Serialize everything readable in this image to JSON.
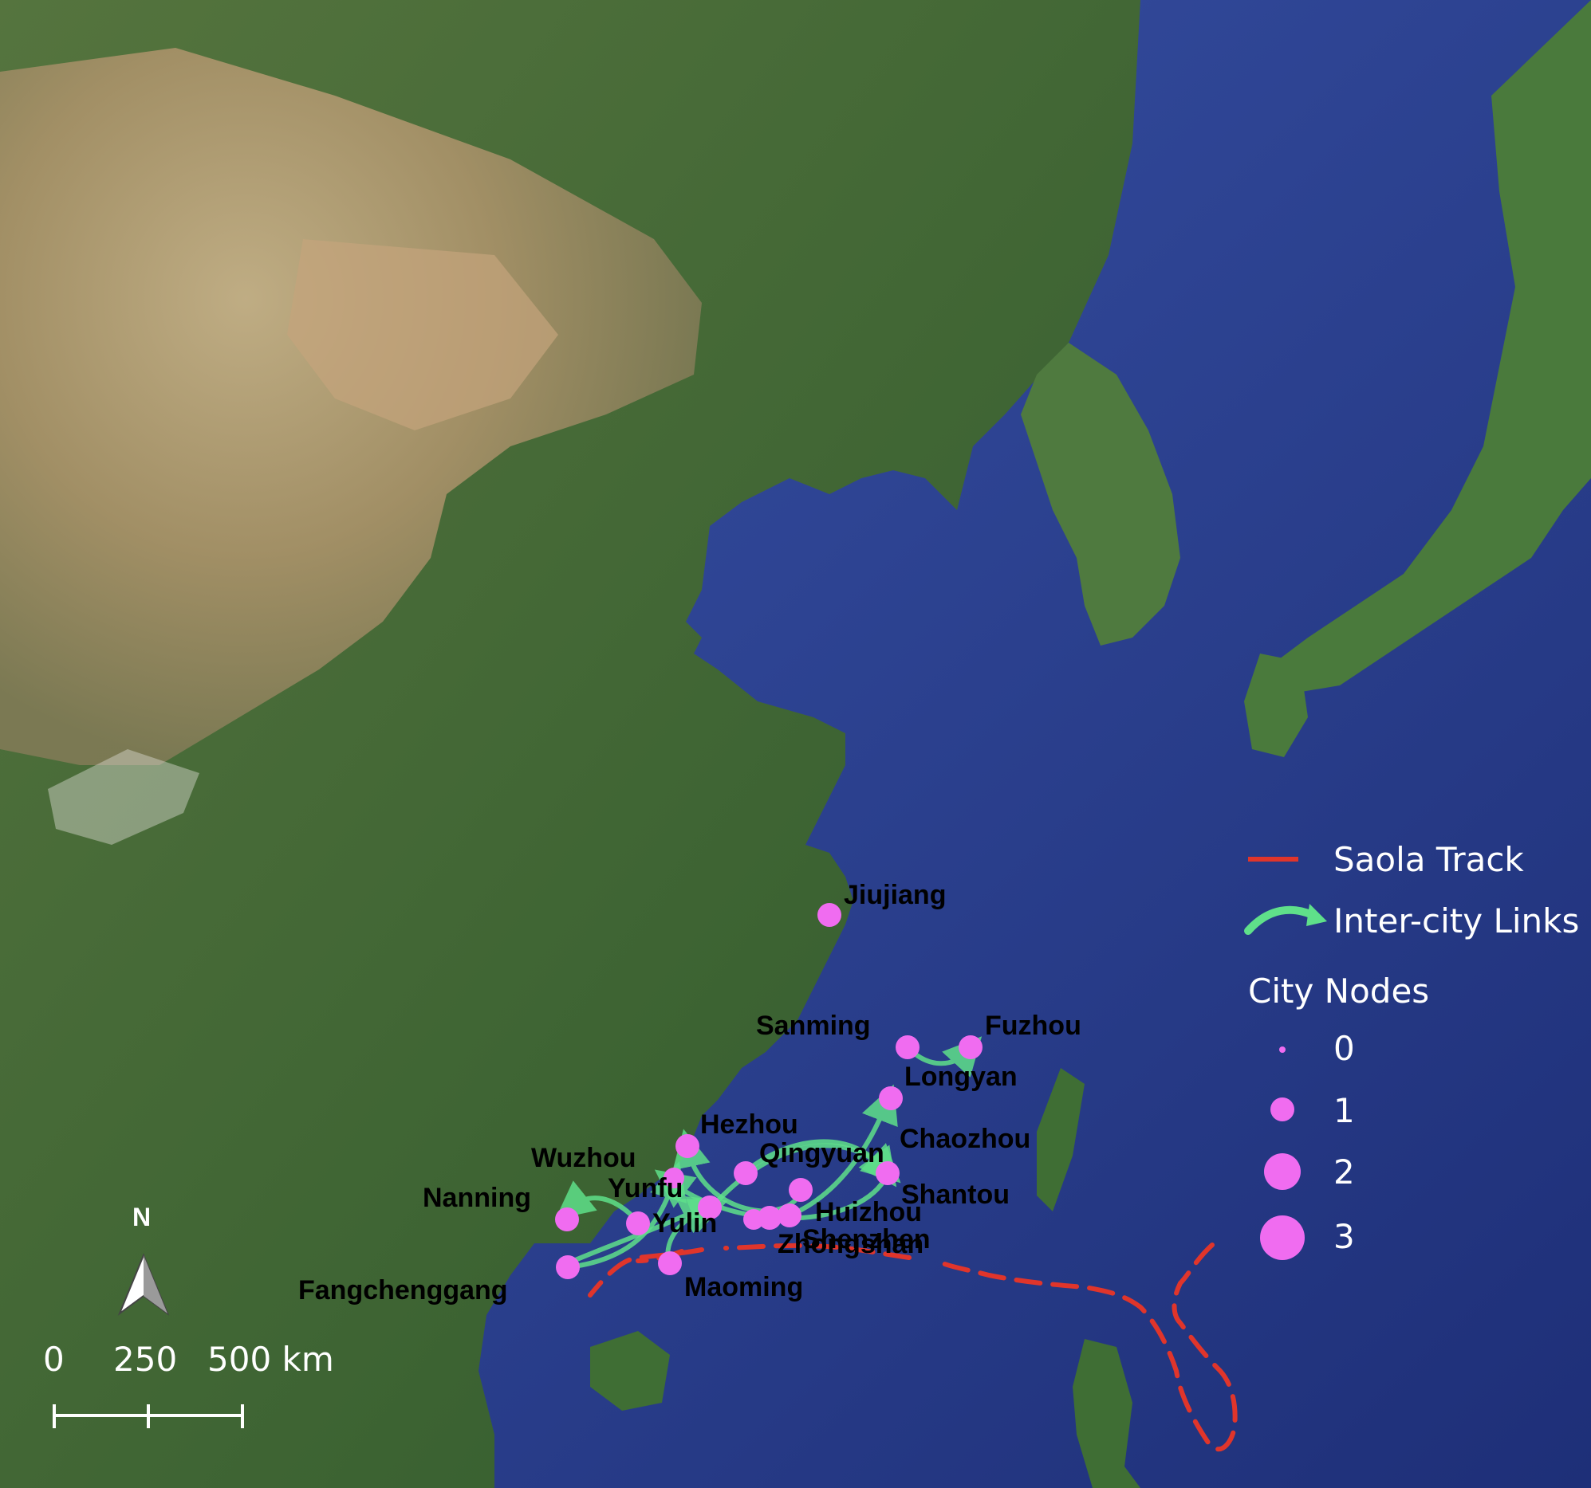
{
  "legend": {
    "track_label": "Saola Track",
    "links_label": "Inter-city Links",
    "nodes_title": "City Nodes",
    "node_sizes": [
      "0",
      "1",
      "2",
      "3"
    ]
  },
  "colors": {
    "track": "#e0352b",
    "links": "#5fe08a",
    "node": "#f06cf0",
    "ocean": "#2e4494",
    "land_green": "#3f6a34",
    "land_desert": "#b8a27a"
  },
  "cities": [
    {
      "name": "Jiujiang"
    },
    {
      "name": "Sanming"
    },
    {
      "name": "Fuzhou"
    },
    {
      "name": "Longyan"
    },
    {
      "name": "Hezhou"
    },
    {
      "name": "Qingyuan"
    },
    {
      "name": "Chaozhou"
    },
    {
      "name": "Wuzhou"
    },
    {
      "name": "Yunfu"
    },
    {
      "name": "Shantou"
    },
    {
      "name": "Nanning"
    },
    {
      "name": "Yulin"
    },
    {
      "name": "Huizhou"
    },
    {
      "name": "Shenzhen"
    },
    {
      "name": "Zhongshan"
    },
    {
      "name": "Fangchenggang"
    },
    {
      "name": "Maoming"
    }
  ],
  "north_arrow": {
    "label": "N"
  },
  "scale_bar": {
    "ticks": [
      "0",
      "250",
      "500 km"
    ]
  }
}
